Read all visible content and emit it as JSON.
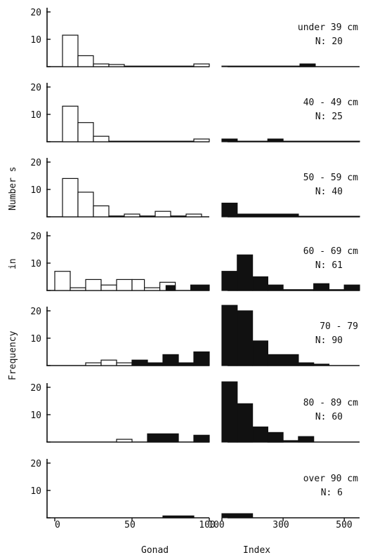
{
  "chart_data": {
    "type": "bar",
    "subtype": "stacked histogram panels",
    "xlabel_left": "Gonad",
    "xlabel_right": "Index",
    "ylabel_parts": [
      "Number s",
      "in",
      "Frequency"
    ],
    "x_ticks_left": [
      "0",
      "50",
      "100"
    ],
    "x_ticks_right": [
      "100",
      "300",
      "500"
    ],
    "x_range_left": [
      0,
      100
    ],
    "x_range_right": [
      100,
      550
    ],
    "y_ticks": [
      "20",
      "10"
    ],
    "ylim": [
      0,
      20
    ],
    "series_encoding": {
      "open": "white outlined bars",
      "solid": "black filled bars"
    },
    "panels": [
      {
        "label": "under 39 cm",
        "n_text": "N: 20",
        "left_bars": [
          {
            "x0": 5,
            "x1": 15,
            "value": 11.5,
            "style": "open"
          },
          {
            "x0": 15,
            "x1": 25,
            "value": 4,
            "style": "open"
          },
          {
            "x0": 25,
            "x1": 35,
            "value": 1,
            "style": "open"
          },
          {
            "x0": 35,
            "x1": 45,
            "value": 0.8,
            "style": "open"
          },
          {
            "x0": 45,
            "x1": 90,
            "value": 0.2,
            "style": "open"
          },
          {
            "x0": 90,
            "x1": 100,
            "value": 1,
            "style": "open"
          }
        ],
        "right_bars": [
          {
            "x0": 100,
            "x1": 355,
            "value": 0.2,
            "style": "solid"
          },
          {
            "x0": 355,
            "x1": 405,
            "value": 1,
            "style": "solid"
          }
        ]
      },
      {
        "label": "40 - 49 cm",
        "n_text": "N: 25",
        "left_bars": [
          {
            "x0": 5,
            "x1": 15,
            "value": 13,
            "style": "open"
          },
          {
            "x0": 15,
            "x1": 25,
            "value": 7,
            "style": "open"
          },
          {
            "x0": 25,
            "x1": 35,
            "value": 2,
            "style": "open"
          },
          {
            "x0": 35,
            "x1": 90,
            "value": 0.2,
            "style": "open"
          },
          {
            "x0": 90,
            "x1": 100,
            "value": 1,
            "style": "open"
          }
        ],
        "right_bars": [
          {
            "x0": 100,
            "x1": 150,
            "value": 1,
            "style": "solid"
          },
          {
            "x0": 150,
            "x1": 250,
            "value": 0.2,
            "style": "solid"
          },
          {
            "x0": 250,
            "x1": 300,
            "value": 1,
            "style": "solid"
          },
          {
            "x0": 300,
            "x1": 550,
            "value": 0.2,
            "style": "solid"
          }
        ]
      },
      {
        "label": "50 - 59 cm",
        "n_text": "N: 40",
        "left_bars": [
          {
            "x0": 5,
            "x1": 15,
            "value": 14,
            "style": "open"
          },
          {
            "x0": 15,
            "x1": 25,
            "value": 9,
            "style": "open"
          },
          {
            "x0": 25,
            "x1": 35,
            "value": 4,
            "style": "open"
          },
          {
            "x0": 35,
            "x1": 45,
            "value": 0.3,
            "style": "open"
          },
          {
            "x0": 45,
            "x1": 55,
            "value": 1,
            "style": "open"
          },
          {
            "x0": 55,
            "x1": 65,
            "value": 0.3,
            "style": "open"
          },
          {
            "x0": 65,
            "x1": 75,
            "value": 2,
            "style": "open"
          },
          {
            "x0": 75,
            "x1": 85,
            "value": 0.3,
            "style": "open"
          },
          {
            "x0": 85,
            "x1": 95,
            "value": 1,
            "style": "open"
          }
        ],
        "right_bars": [
          {
            "x0": 100,
            "x1": 150,
            "value": 5,
            "style": "solid"
          },
          {
            "x0": 150,
            "x1": 350,
            "value": 1,
            "style": "solid"
          },
          {
            "x0": 350,
            "x1": 550,
            "value": 0.2,
            "style": "solid"
          }
        ]
      },
      {
        "label": "60 - 69 cm",
        "n_text": "N: 61",
        "left_bars": [
          {
            "x0": 0,
            "x1": 10,
            "value": 7,
            "style": "open"
          },
          {
            "x0": 10,
            "x1": 20,
            "value": 1,
            "style": "open"
          },
          {
            "x0": 20,
            "x1": 30,
            "value": 4,
            "style": "open"
          },
          {
            "x0": 30,
            "x1": 40,
            "value": 2,
            "style": "open"
          },
          {
            "x0": 40,
            "x1": 50,
            "value": 4,
            "style": "open"
          },
          {
            "x0": 50,
            "x1": 58,
            "value": 4,
            "style": "open"
          },
          {
            "x0": 58,
            "x1": 68,
            "value": 1,
            "style": "open"
          },
          {
            "x0": 68,
            "x1": 78,
            "value": 3,
            "style": "open"
          },
          {
            "x0": 72,
            "x1": 78,
            "value": 1.8,
            "style": "solid"
          },
          {
            "x0": 88,
            "x1": 100,
            "value": 2,
            "style": "solid"
          }
        ],
        "right_bars": [
          {
            "x0": 100,
            "x1": 150,
            "value": 7,
            "style": "solid"
          },
          {
            "x0": 150,
            "x1": 200,
            "value": 13,
            "style": "solid"
          },
          {
            "x0": 200,
            "x1": 250,
            "value": 5,
            "style": "solid"
          },
          {
            "x0": 250,
            "x1": 300,
            "value": 2,
            "style": "solid"
          },
          {
            "x0": 300,
            "x1": 400,
            "value": 0.3,
            "style": "solid"
          },
          {
            "x0": 400,
            "x1": 450,
            "value": 2.5,
            "style": "solid"
          },
          {
            "x0": 450,
            "x1": 500,
            "value": 0.3,
            "style": "solid"
          },
          {
            "x0": 500,
            "x1": 550,
            "value": 2,
            "style": "solid"
          }
        ]
      },
      {
        "label": "70 - 79",
        "n_text": "N: 90",
        "left_bars": [
          {
            "x0": 20,
            "x1": 30,
            "value": 1,
            "style": "open"
          },
          {
            "x0": 30,
            "x1": 40,
            "value": 2,
            "style": "open"
          },
          {
            "x0": 40,
            "x1": 50,
            "value": 1,
            "style": "open"
          },
          {
            "x0": 50,
            "x1": 60,
            "value": 2,
            "style": "solid"
          },
          {
            "x0": 60,
            "x1": 70,
            "value": 1,
            "style": "solid"
          },
          {
            "x0": 70,
            "x1": 80,
            "value": 4,
            "style": "solid"
          },
          {
            "x0": 80,
            "x1": 90,
            "value": 1,
            "style": "solid"
          },
          {
            "x0": 90,
            "x1": 100,
            "value": 5,
            "style": "solid"
          }
        ],
        "right_bars": [
          {
            "x0": 100,
            "x1": 150,
            "value": 22,
            "style": "solid"
          },
          {
            "x0": 150,
            "x1": 200,
            "value": 20,
            "style": "solid"
          },
          {
            "x0": 200,
            "x1": 250,
            "value": 9,
            "style": "solid"
          },
          {
            "x0": 250,
            "x1": 350,
            "value": 4,
            "style": "solid"
          },
          {
            "x0": 350,
            "x1": 400,
            "value": 1,
            "style": "solid"
          },
          {
            "x0": 400,
            "x1": 450,
            "value": 0.5,
            "style": "solid"
          }
        ]
      },
      {
        "label": "80 - 89 cm",
        "n_text": "N: 60",
        "left_bars": [
          {
            "x0": 40,
            "x1": 50,
            "value": 1,
            "style": "open"
          },
          {
            "x0": 60,
            "x1": 80,
            "value": 3,
            "style": "solid"
          },
          {
            "x0": 90,
            "x1": 100,
            "value": 2.5,
            "style": "solid"
          }
        ],
        "right_bars": [
          {
            "x0": 100,
            "x1": 150,
            "value": 22,
            "style": "solid"
          },
          {
            "x0": 150,
            "x1": 200,
            "value": 14,
            "style": "solid"
          },
          {
            "x0": 200,
            "x1": 250,
            "value": 5.5,
            "style": "solid"
          },
          {
            "x0": 250,
            "x1": 300,
            "value": 3.5,
            "style": "solid"
          },
          {
            "x0": 300,
            "x1": 350,
            "value": 0.5,
            "style": "solid"
          },
          {
            "x0": 350,
            "x1": 400,
            "value": 2,
            "style": "solid"
          }
        ]
      },
      {
        "label": "over 90 cm",
        "n_text": "N:  6",
        "left_bars": [
          {
            "x0": 70,
            "x1": 90,
            "value": 0.7,
            "style": "solid"
          }
        ],
        "right_bars": [
          {
            "x0": 100,
            "x1": 200,
            "value": 1.5,
            "style": "solid"
          }
        ]
      }
    ]
  }
}
